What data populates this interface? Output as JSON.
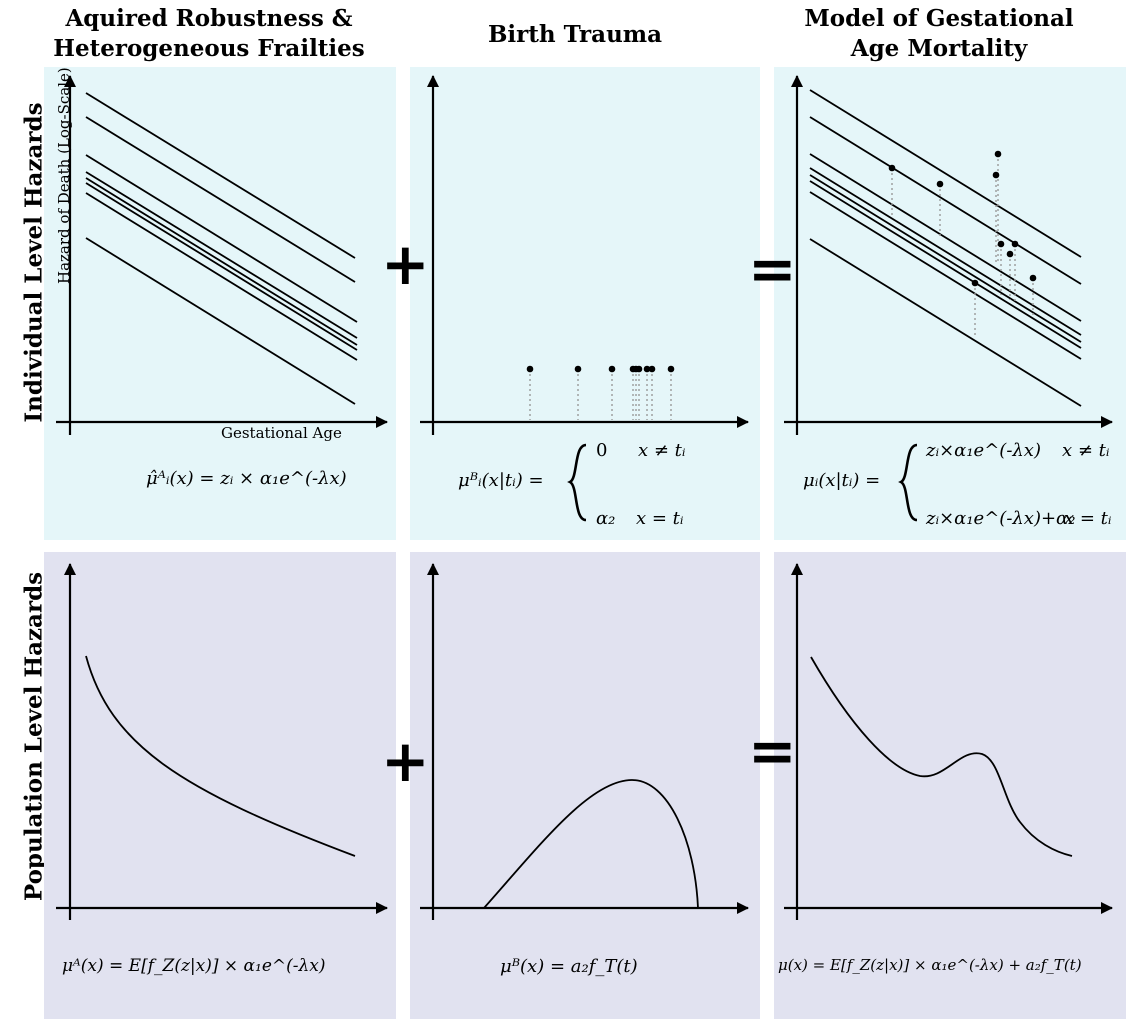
{
  "columns": {
    "col1": "Aquired Robustness &\nHeterogeneous Frailties",
    "col2": "Birth Trauma",
    "col3": "Model of Gestational\nAge Mortality"
  },
  "rows": {
    "row1": "Individual Level Hazards",
    "row2": "Population Level Hazards"
  },
  "axes": {
    "y_label": "Hazard of Death (Log-Scale)",
    "x_label": "Gestational Age"
  },
  "operators": {
    "plus": "+",
    "equals": "="
  },
  "formulas": {
    "top1": "μ̂ᴬᵢ(x) = zᵢ × α₁e^(-λx)",
    "top2_lhs": "μᴮᵢ(x|tᵢ) =",
    "top2_case1_val": "0",
    "top2_case1_cond": "x ≠ tᵢ",
    "top2_case2_val": "α₂",
    "top2_case2_cond": "x = tᵢ",
    "top3_lhs": "μᵢ(x|tᵢ) =",
    "top3_case1_val": "zᵢ×α₁e^(-λx)",
    "top3_case1_cond": "x ≠ tᵢ",
    "top3_case2_val": "zᵢ×α₁e^(-λx)+α₂",
    "top3_case2_cond": "x = tᵢ",
    "bot1": "μᴬ(x) = E[f_Z(z|x)] × α₁e^(-λx)",
    "bot2": "μᴮ(x) = a₂f_T(t)",
    "bot3": "μ(x) = E[f_Z(z|x)] × α₁e^(-λx) + a₂f_T(t)"
  },
  "colors": {
    "top_panel": "#e5f6f9",
    "bottom_panel": "#e1e2f0",
    "ink": "#000000",
    "dotted": "#9a9a9a"
  }
}
